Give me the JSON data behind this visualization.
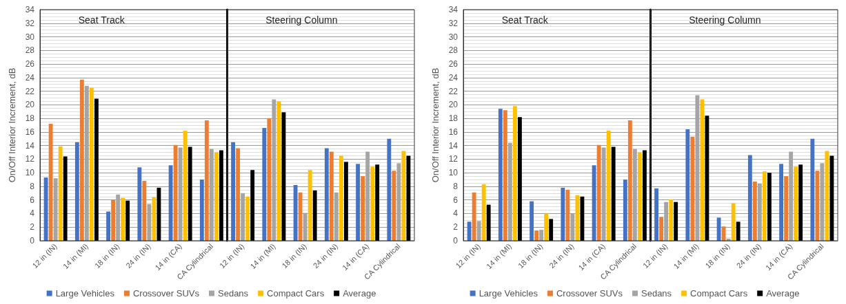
{
  "chart_data": [
    {
      "type": "bar",
      "ylabel": "On/Off Interior Increment, dB",
      "annotations": [
        "Seat Track"
      ],
      "categories": [
        "12 in (IN)",
        "14 in (MI)",
        "18 in (IN)",
        "24 in (IN)",
        "14 in (CA)",
        "CA Cylindrical"
      ],
      "series": [
        {
          "name": "Large Vehicles",
          "color": "#4472c4",
          "values": [
            9.3,
            14.5,
            4.3,
            10.8,
            11.1,
            9.0
          ]
        },
        {
          "name": "Crossover SUVs",
          "color": "#ed7d31",
          "values": [
            17.2,
            23.7,
            6.0,
            8.8,
            14.1,
            17.7
          ]
        },
        {
          "name": "Sedans",
          "color": "#a5a5a5",
          "values": [
            9.2,
            22.8,
            6.8,
            5.4,
            13.7,
            13.5
          ]
        },
        {
          "name": "Compact Cars",
          "color": "#ffc000",
          "values": [
            13.9,
            22.5,
            6.3,
            6.4,
            16.2,
            13.0
          ]
        },
        {
          "name": "Average",
          "color": "#000000",
          "values": [
            12.4,
            20.9,
            5.9,
            7.8,
            13.8,
            13.3
          ]
        }
      ],
      "ylim": [
        0,
        34
      ],
      "yticks": [
        0,
        2,
        4,
        6,
        8,
        10,
        12,
        14,
        16,
        18,
        20,
        22,
        24,
        26,
        28,
        30,
        32,
        34
      ],
      "grid": "y",
      "legend": "bottom"
    },
    {
      "type": "bar",
      "annotations": [
        "Steering Column"
      ],
      "categories": [
        "12 in (IN)",
        "14 in (MI)",
        "18 in (IN)",
        "24 in (IN)",
        "14 in (CA)",
        "CA Cylindrical"
      ],
      "series": [
        {
          "color": "#4472c4",
          "values": [
            14.5,
            16.6,
            8.2,
            13.6,
            11.3,
            15.0
          ]
        },
        {
          "color": "#ed7d31",
          "values": [
            13.6,
            18.0,
            7.1,
            13.1,
            9.5,
            10.3
          ]
        },
        {
          "color": "#a5a5a5",
          "values": [
            7.0,
            20.8,
            4.1,
            7.1,
            13.1,
            11.4
          ]
        },
        {
          "color": "#ffc000",
          "values": [
            6.5,
            20.5,
            10.4,
            12.5,
            10.9,
            13.2
          ]
        },
        {
          "color": "#000000",
          "values": [
            10.4,
            18.9,
            7.4,
            11.6,
            11.2,
            12.5
          ]
        }
      ],
      "ylim": [
        0,
        34
      ],
      "yticks": [
        0,
        2,
        4,
        6,
        8,
        10,
        12,
        14,
        16,
        18,
        20,
        22,
        24,
        26,
        28,
        30,
        32,
        34
      ],
      "grid": "y",
      "tick_labels": "x"
    },
    {
      "type": "bar",
      "ylabel": "On/Off Interior Increment, dB",
      "annotations": [
        "Seat Track"
      ],
      "categories": [
        "12 in (IN)",
        "14 in (MI)",
        "18 in (IN)",
        "24 in (IN)",
        "14 in (CA)",
        "CA Cylindrical"
      ],
      "series": [
        {
          "name": "Large Vehicles",
          "color": "#4472c4",
          "values": [
            2.8,
            19.4,
            5.8,
            7.8,
            11.1,
            9.0
          ]
        },
        {
          "name": "Crossover SUVs",
          "color": "#ed7d31",
          "values": [
            7.1,
            19.2,
            1.5,
            7.5,
            14.1,
            17.7
          ]
        },
        {
          "name": "Sedans",
          "color": "#a5a5a5",
          "values": [
            2.9,
            14.4,
            1.6,
            4.0,
            13.7,
            13.5
          ]
        },
        {
          "name": "Compact Cars",
          "color": "#ffc000",
          "values": [
            8.3,
            19.8,
            4.0,
            6.7,
            16.2,
            13.0
          ]
        },
        {
          "name": "Average",
          "color": "#000000",
          "values": [
            5.3,
            18.2,
            3.2,
            6.5,
            13.8,
            13.3
          ]
        }
      ],
      "ylim": [
        0,
        34
      ],
      "yticks": [
        0,
        2,
        4,
        6,
        8,
        10,
        12,
        14,
        16,
        18,
        20,
        22,
        24,
        26,
        28,
        30,
        32,
        34
      ],
      "grid": "y",
      "legend": "bottom"
    },
    {
      "type": "bar",
      "annotations": [
        "Steering Column"
      ],
      "categories": [
        "12 in (IN)",
        "14 in (MI)",
        "18 in (IN)",
        "24 in (IN)",
        "14 in (CA)",
        "CA Cylindrical"
      ],
      "series": [
        {
          "color": "#4472c4",
          "values": [
            7.7,
            16.4,
            3.4,
            12.6,
            11.3,
            15.0
          ]
        },
        {
          "color": "#ed7d31",
          "values": [
            3.5,
            15.3,
            2.1,
            8.7,
            9.5,
            10.3
          ]
        },
        {
          "color": "#a5a5a5",
          "values": [
            5.7,
            21.4,
            0.3,
            8.4,
            13.1,
            11.4
          ]
        },
        {
          "color": "#ffc000",
          "values": [
            6.1,
            20.8,
            5.5,
            10.2,
            10.9,
            13.2
          ]
        },
        {
          "color": "#000000",
          "values": [
            5.7,
            18.4,
            2.8,
            10.0,
            11.2,
            12.5
          ]
        }
      ],
      "ylim": [
        0,
        34
      ],
      "yticks": [
        0,
        2,
        4,
        6,
        8,
        10,
        12,
        14,
        16,
        18,
        20,
        22,
        24,
        26,
        28,
        30,
        32,
        34
      ],
      "grid": "y",
      "tick_labels": "x"
    }
  ]
}
